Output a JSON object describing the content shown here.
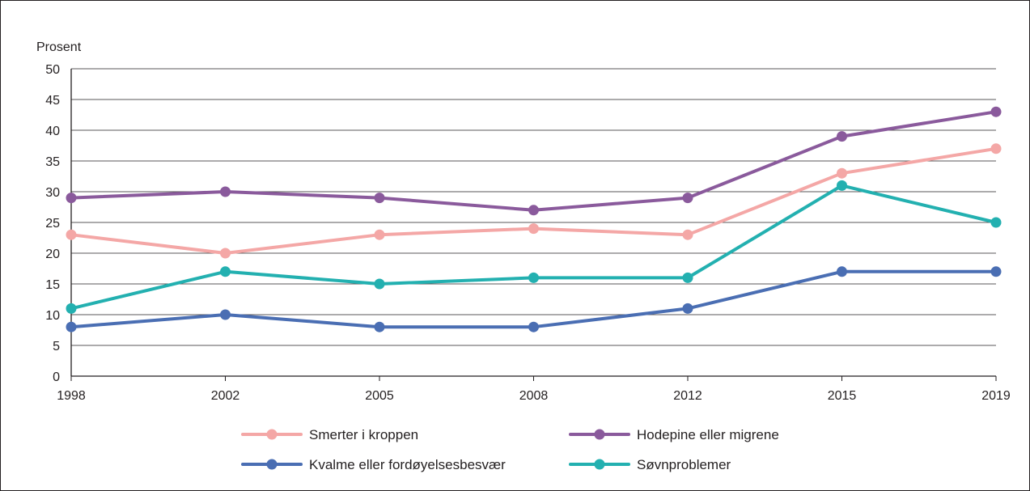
{
  "chart_data": {
    "type": "line",
    "title": "",
    "xlabel": "",
    "ylabel": "Prosent",
    "ylim": [
      0,
      50
    ],
    "yticks": [
      0,
      5,
      10,
      15,
      20,
      25,
      30,
      35,
      40,
      45,
      50
    ],
    "categories": [
      "1998",
      "2002",
      "2005",
      "2008",
      "2012",
      "2015",
      "2019"
    ],
    "grid": "horizontal",
    "legend": "bottom",
    "series": [
      {
        "name": "Smerter i kroppen",
        "color": "#f4a7a6",
        "values": [
          23,
          20,
          23,
          24,
          23,
          33,
          37
        ]
      },
      {
        "name": "Hodepine eller migrene",
        "color": "#8a5a9c",
        "values": [
          29,
          30,
          29,
          27,
          29,
          39,
          43
        ]
      },
      {
        "name": "Kvalme eller fordøyelsesbesvær",
        "color": "#4a6eb3",
        "values": [
          8,
          10,
          8,
          8,
          11,
          17,
          17
        ]
      },
      {
        "name": "Søvnproblemer",
        "color": "#23b0b0",
        "values": [
          11,
          17,
          15,
          16,
          16,
          31,
          25
        ]
      }
    ]
  }
}
